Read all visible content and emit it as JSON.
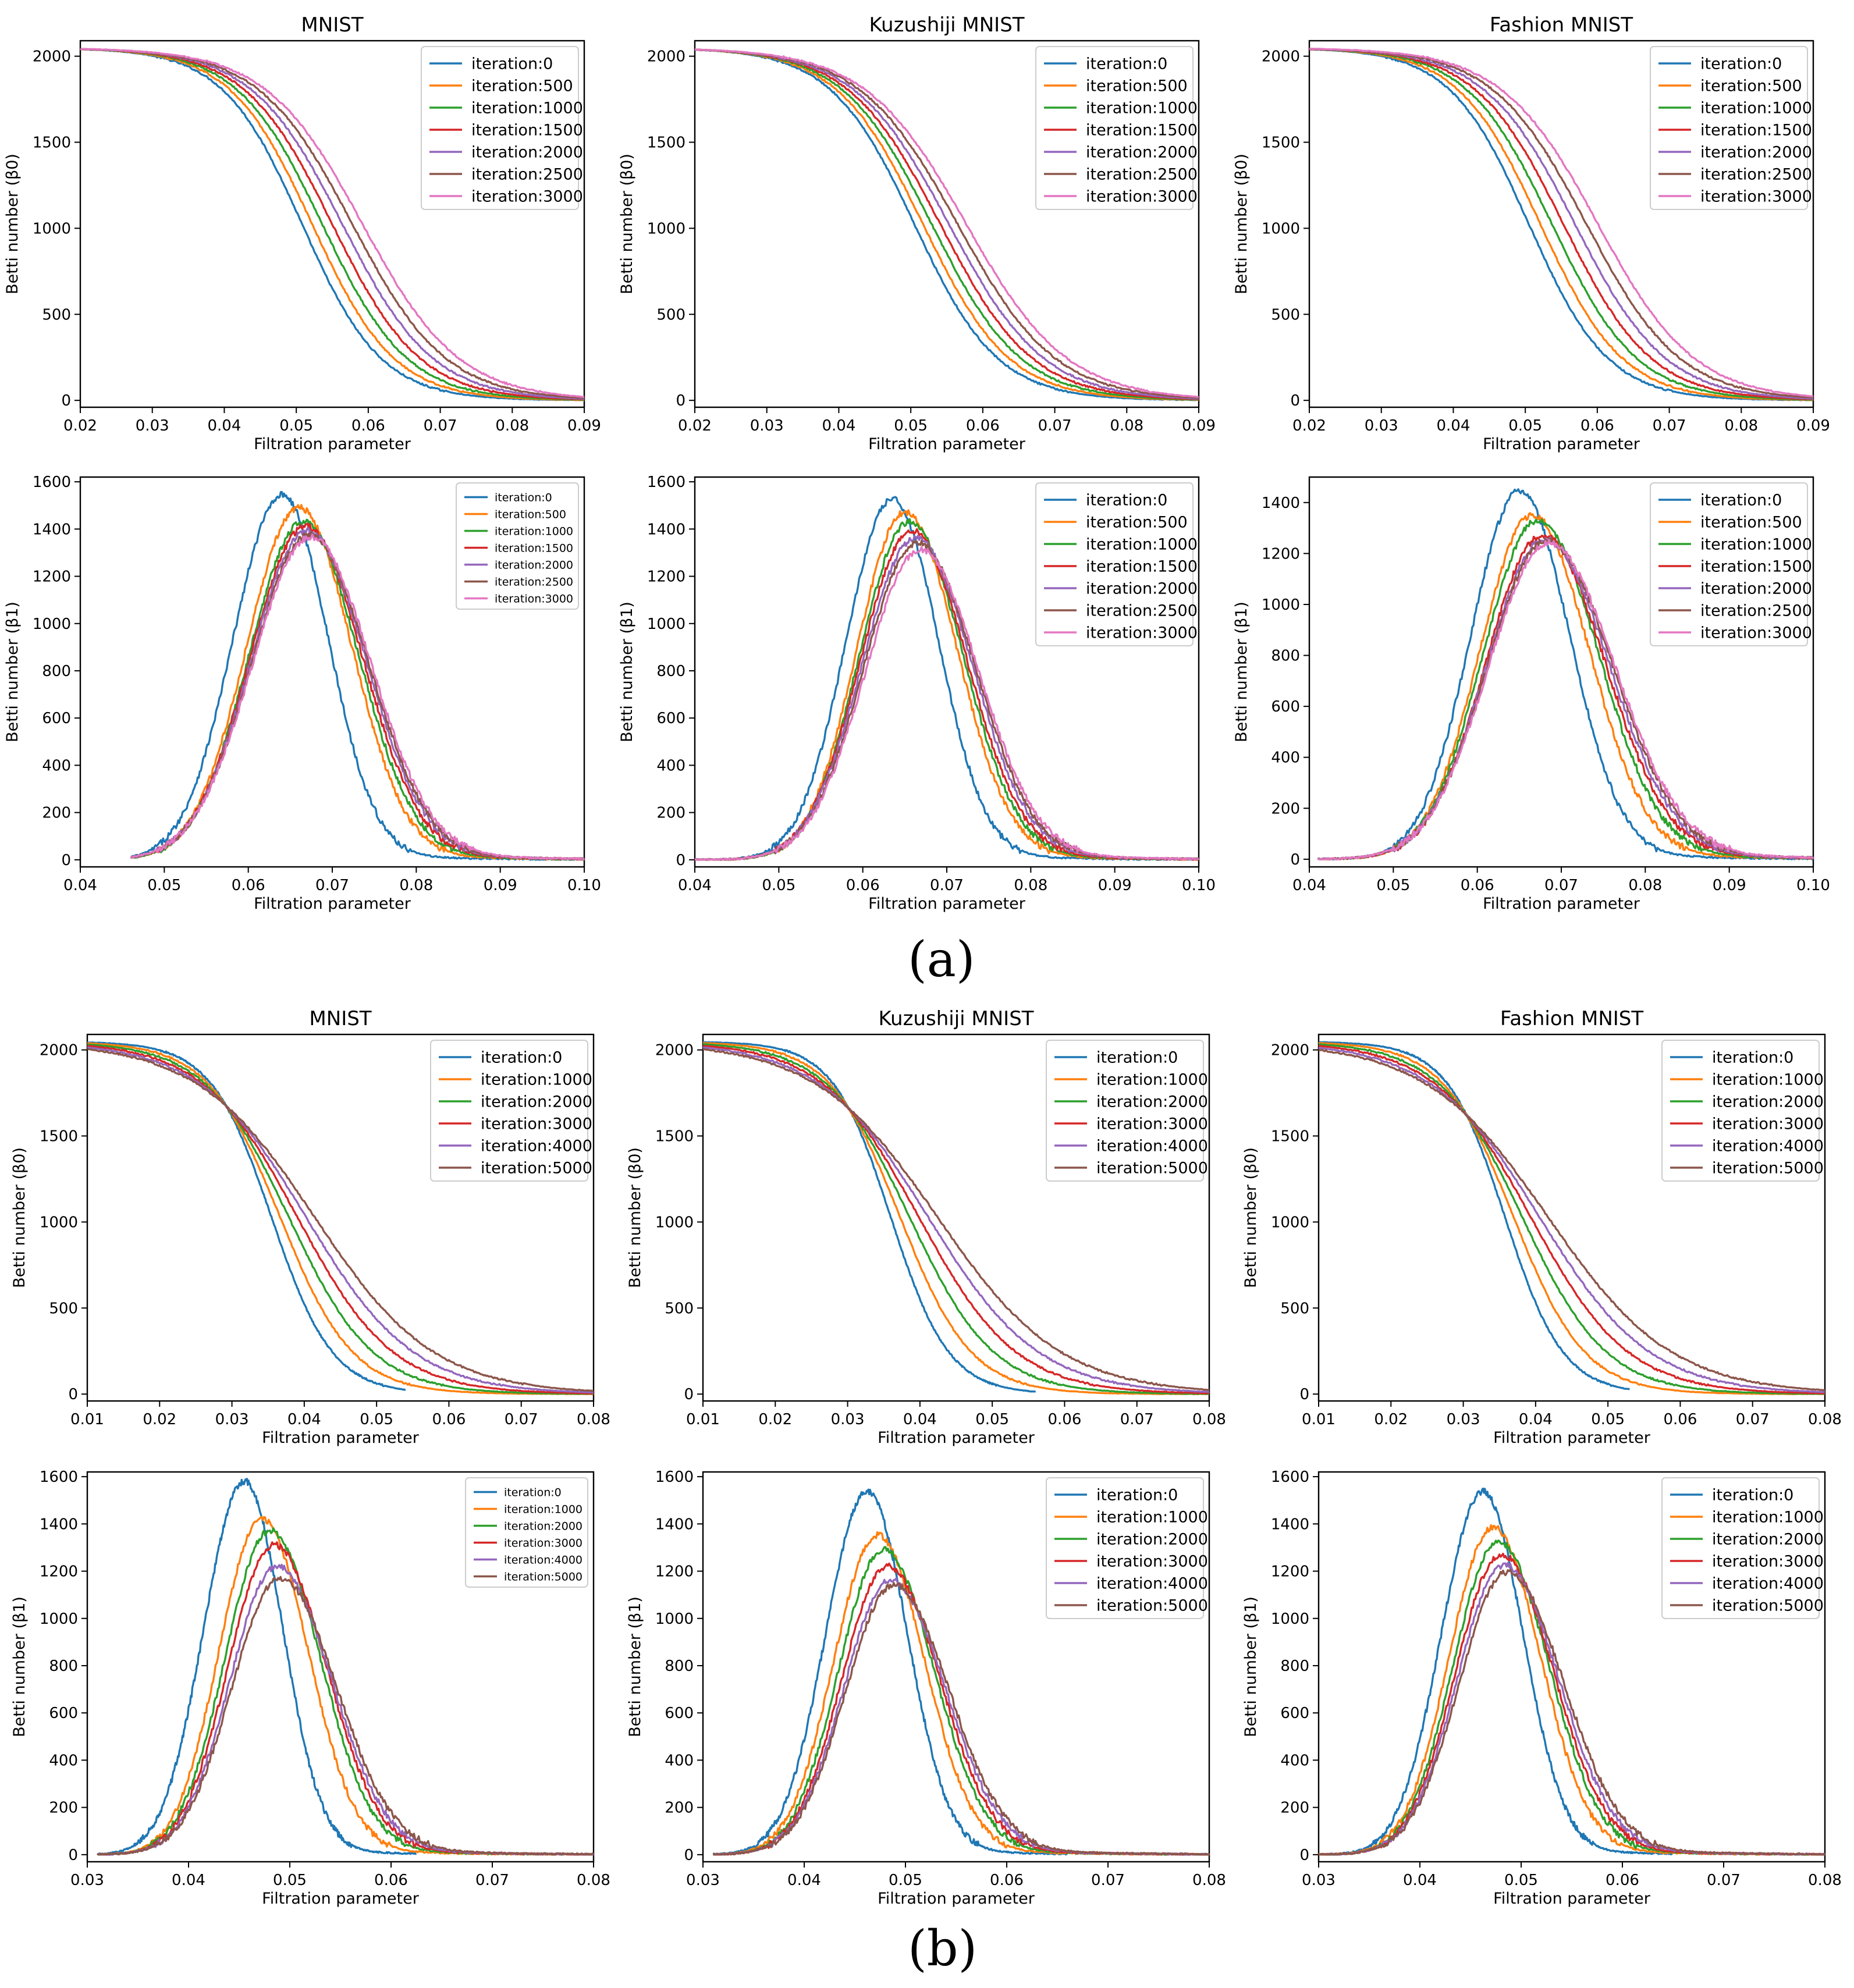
{
  "panels": [
    {
      "label": "(a)"
    },
    {
      "label": "(b)"
    }
  ],
  "palette": [
    "#1f77b4",
    "#ff7f0e",
    "#2ca02c",
    "#d62728",
    "#9467bd",
    "#8c564b",
    "#e377c2"
  ],
  "chart_data": [
    {
      "type": "line",
      "panel": "(a)",
      "row": 0,
      "col": 0,
      "title": "MNIST",
      "xlabel": "Filtration parameter",
      "ylabel": "Betti number (β0)",
      "xlim": [
        0.02,
        0.09
      ],
      "ylim": [
        -40,
        2090
      ],
      "xticks": [
        "0.02",
        "0.03",
        "0.04",
        "0.05",
        "0.06",
        "0.07",
        "0.08",
        "0.09"
      ],
      "yticks": [
        "0",
        "500",
        "1000",
        "1500",
        "2000"
      ],
      "legend": "top-right",
      "legend_size": "normal",
      "curve": {
        "kind": "sigmoid",
        "top": 2048,
        "x0": 0.0508,
        "x0_step": 0.0014,
        "scale": 0.0055,
        "scale_step": 0.0002,
        "xmin": 0.02,
        "xmax": 0.09
      },
      "series": [
        {
          "name": "iteration:0"
        },
        {
          "name": "iteration:500"
        },
        {
          "name": "iteration:1000"
        },
        {
          "name": "iteration:1500"
        },
        {
          "name": "iteration:2000"
        },
        {
          "name": "iteration:2500"
        },
        {
          "name": "iteration:3000"
        }
      ]
    },
    {
      "type": "line",
      "panel": "(a)",
      "row": 0,
      "col": 1,
      "title": "Kuzushiji MNIST",
      "xlabel": "Filtration parameter",
      "ylabel": "Betti number (β0)",
      "xlim": [
        0.02,
        0.09
      ],
      "ylim": [
        -40,
        2090
      ],
      "xticks": [
        "0.02",
        "0.03",
        "0.04",
        "0.05",
        "0.06",
        "0.07",
        "0.08",
        "0.09"
      ],
      "yticks": [
        "0",
        "500",
        "1000",
        "1500",
        "2000"
      ],
      "legend": "top-right",
      "legend_size": "normal",
      "curve": {
        "kind": "sigmoid",
        "top": 2048,
        "x0": 0.0505,
        "x0_step": 0.0012,
        "scale": 0.0058,
        "scale_step": 0.0002,
        "xmin": 0.02,
        "xmax": 0.09
      },
      "series": [
        {
          "name": "iteration:0"
        },
        {
          "name": "iteration:500"
        },
        {
          "name": "iteration:1000"
        },
        {
          "name": "iteration:1500"
        },
        {
          "name": "iteration:2000"
        },
        {
          "name": "iteration:2500"
        },
        {
          "name": "iteration:3000"
        }
      ]
    },
    {
      "type": "line",
      "panel": "(a)",
      "row": 0,
      "col": 2,
      "title": "Fashion MNIST",
      "xlabel": "Filtration parameter",
      "ylabel": "Betti number (β0)",
      "xlim": [
        0.02,
        0.09
      ],
      "ylim": [
        -40,
        2090
      ],
      "xticks": [
        "0.02",
        "0.03",
        "0.04",
        "0.05",
        "0.06",
        "0.07",
        "0.08",
        "0.09"
      ],
      "yticks": [
        "0",
        "500",
        "1000",
        "1500",
        "2000"
      ],
      "legend": "top-right",
      "legend_size": "normal",
      "curve": {
        "kind": "sigmoid",
        "top": 2048,
        "x0": 0.0505,
        "x0_step": 0.0016,
        "scale": 0.0055,
        "scale_step": 0.0002,
        "xmin": 0.02,
        "xmax": 0.09
      },
      "series": [
        {
          "name": "iteration:0"
        },
        {
          "name": "iteration:500"
        },
        {
          "name": "iteration:1000"
        },
        {
          "name": "iteration:1500"
        },
        {
          "name": "iteration:2000"
        },
        {
          "name": "iteration:2500"
        },
        {
          "name": "iteration:3000"
        }
      ]
    },
    {
      "type": "line",
      "panel": "(a)",
      "row": 1,
      "col": 0,
      "title": "",
      "xlabel": "Filtration parameter",
      "ylabel": "Betti number (β1)",
      "xlim": [
        0.04,
        0.1
      ],
      "ylim": [
        -30,
        1620
      ],
      "xticks": [
        "0.04",
        "0.05",
        "0.06",
        "0.07",
        "0.08",
        "0.09",
        "0.10"
      ],
      "yticks": [
        "0",
        "200",
        "400",
        "600",
        "800",
        "1000",
        "1200",
        "1400",
        "1600"
      ],
      "legend": "top-right",
      "legend_size": "small",
      "curve": {
        "kind": "peak",
        "xmin": 0.046,
        "xmax": 0.1,
        "peaks": [
          1545,
          1490,
          1430,
          1410,
          1390,
          1375,
          1365
        ],
        "mu": [
          0.064,
          0.066,
          0.0665,
          0.0668,
          0.067,
          0.0672,
          0.0674
        ],
        "sl": [
          0.0058,
          0.0062,
          0.0064,
          0.0066,
          0.0067,
          0.0068,
          0.0069
        ],
        "sr": [
          0.0055,
          0.0063,
          0.0066,
          0.0068,
          0.007,
          0.0071,
          0.0072
        ]
      },
      "series": [
        {
          "name": "iteration:0"
        },
        {
          "name": "iteration:500"
        },
        {
          "name": "iteration:1000"
        },
        {
          "name": "iteration:1500"
        },
        {
          "name": "iteration:2000"
        },
        {
          "name": "iteration:2500"
        },
        {
          "name": "iteration:3000"
        }
      ]
    },
    {
      "type": "line",
      "panel": "(a)",
      "row": 1,
      "col": 1,
      "title": "",
      "xlabel": "Filtration parameter",
      "ylabel": "Betti number (β1)",
      "xlim": [
        0.04,
        0.1
      ],
      "ylim": [
        -30,
        1620
      ],
      "xticks": [
        "0.04",
        "0.05",
        "0.06",
        "0.07",
        "0.08",
        "0.09",
        "0.10"
      ],
      "yticks": [
        "0",
        "200",
        "400",
        "600",
        "800",
        "1000",
        "1200",
        "1400",
        "1600"
      ],
      "legend": "top-right",
      "legend_size": "normal",
      "curve": {
        "kind": "peak",
        "xmin": 0.04,
        "xmax": 0.1,
        "peaks": [
          1525,
          1470,
          1430,
          1390,
          1360,
          1340,
          1310
        ],
        "mu": [
          0.0635,
          0.065,
          0.0655,
          0.0658,
          0.0662,
          0.0665,
          0.0668
        ],
        "sl": [
          0.0055,
          0.0057,
          0.0059,
          0.0061,
          0.0063,
          0.0064,
          0.0065
        ],
        "sr": [
          0.0055,
          0.0062,
          0.0064,
          0.0066,
          0.0068,
          0.0069,
          0.007
        ]
      },
      "series": [
        {
          "name": "iteration:0"
        },
        {
          "name": "iteration:500"
        },
        {
          "name": "iteration:1000"
        },
        {
          "name": "iteration:1500"
        },
        {
          "name": "iteration:2000"
        },
        {
          "name": "iteration:2500"
        },
        {
          "name": "iteration:3000"
        }
      ]
    },
    {
      "type": "line",
      "panel": "(a)",
      "row": 1,
      "col": 2,
      "title": "",
      "xlabel": "Filtration parameter",
      "ylabel": "Betti number (β1)",
      "xlim": [
        0.04,
        0.1
      ],
      "ylim": [
        -30,
        1500
      ],
      "xticks": [
        "0.04",
        "0.05",
        "0.06",
        "0.07",
        "0.08",
        "0.09",
        "0.10"
      ],
      "yticks": [
        "0",
        "200",
        "400",
        "600",
        "800",
        "1000",
        "1200",
        "1400"
      ],
      "legend": "top-right",
      "legend_size": "normal",
      "curve": {
        "kind": "peak",
        "xmin": 0.041,
        "xmax": 0.1,
        "peaks": [
          1445,
          1350,
          1330,
          1270,
          1255,
          1250,
          1240
        ],
        "mu": [
          0.065,
          0.0665,
          0.0672,
          0.0677,
          0.068,
          0.0682,
          0.0684
        ],
        "sl": [
          0.0058,
          0.0062,
          0.0065,
          0.0067,
          0.0069,
          0.007,
          0.0071
        ],
        "sr": [
          0.006,
          0.0068,
          0.0072,
          0.0075,
          0.0077,
          0.0079,
          0.008
        ]
      },
      "series": [
        {
          "name": "iteration:0"
        },
        {
          "name": "iteration:500"
        },
        {
          "name": "iteration:1000"
        },
        {
          "name": "iteration:1500"
        },
        {
          "name": "iteration:2000"
        },
        {
          "name": "iteration:2500"
        },
        {
          "name": "iteration:3000"
        }
      ]
    },
    {
      "type": "line",
      "panel": "(b)",
      "row": 0,
      "col": 0,
      "title": "MNIST",
      "xlabel": "Filtration parameter",
      "ylabel": "Betti number (β0)",
      "xlim": [
        0.01,
        0.08
      ],
      "ylim": [
        -40,
        2090
      ],
      "xticks": [
        "0.01",
        "0.02",
        "0.03",
        "0.04",
        "0.05",
        "0.06",
        "0.07",
        "0.08"
      ],
      "yticks": [
        "0",
        "500",
        "1000",
        "1500",
        "2000"
      ],
      "legend": "top-right",
      "legend_size": "normal",
      "curve": {
        "kind": "sigmoid",
        "top": 2048,
        "x0": 0.0355,
        "x0_step": 0.0012,
        "scale": 0.0042,
        "scale_step": 0.0008,
        "xmin": 0.01,
        "xmaxs": [
          0.054,
          0.08,
          0.08,
          0.08,
          0.08,
          0.08
        ]
      },
      "series": [
        {
          "name": "iteration:0"
        },
        {
          "name": "iteration:1000"
        },
        {
          "name": "iteration:2000"
        },
        {
          "name": "iteration:3000"
        },
        {
          "name": "iteration:4000"
        },
        {
          "name": "iteration:5000"
        }
      ]
    },
    {
      "type": "line",
      "panel": "(b)",
      "row": 0,
      "col": 1,
      "title": "Kuzushiji MNIST",
      "xlabel": "Filtration parameter",
      "ylabel": "Betti number (β0)",
      "xlim": [
        0.01,
        0.08
      ],
      "ylim": [
        -40,
        2090
      ],
      "xticks": [
        "0.01",
        "0.02",
        "0.03",
        "0.04",
        "0.05",
        "0.06",
        "0.07",
        "0.08"
      ],
      "yticks": [
        "0",
        "500",
        "1000",
        "1500",
        "2000"
      ],
      "legend": "top-right",
      "legend_size": "normal",
      "curve": {
        "kind": "sigmoid",
        "top": 2048,
        "x0": 0.036,
        "x0_step": 0.0013,
        "scale": 0.004,
        "scale_step": 0.0009,
        "xmin": 0.01,
        "xmaxs": [
          0.056,
          0.08,
          0.08,
          0.08,
          0.08,
          0.08
        ]
      },
      "series": [
        {
          "name": "iteration:0"
        },
        {
          "name": "iteration:1000"
        },
        {
          "name": "iteration:2000"
        },
        {
          "name": "iteration:3000"
        },
        {
          "name": "iteration:4000"
        },
        {
          "name": "iteration:5000"
        }
      ]
    },
    {
      "type": "line",
      "panel": "(b)",
      "row": 0,
      "col": 2,
      "title": "Fashion MNIST",
      "xlabel": "Filtration parameter",
      "ylabel": "Betti number (β0)",
      "xlim": [
        0.01,
        0.08
      ],
      "ylim": [
        -40,
        2090
      ],
      "xticks": [
        "0.01",
        "0.02",
        "0.03",
        "0.04",
        "0.05",
        "0.06",
        "0.07",
        "0.08"
      ],
      "yticks": [
        "0",
        "500",
        "1000",
        "1500",
        "2000"
      ],
      "legend": "top-right",
      "legend_size": "normal",
      "curve": {
        "kind": "sigmoid",
        "top": 2048,
        "x0": 0.0358,
        "x0_step": 0.0012,
        "scale": 0.004,
        "scale_step": 0.0009,
        "xmin": 0.01,
        "xmaxs": [
          0.053,
          0.08,
          0.08,
          0.08,
          0.08,
          0.08
        ]
      },
      "series": [
        {
          "name": "iteration:0"
        },
        {
          "name": "iteration:1000"
        },
        {
          "name": "iteration:2000"
        },
        {
          "name": "iteration:3000"
        },
        {
          "name": "iteration:4000"
        },
        {
          "name": "iteration:5000"
        }
      ]
    },
    {
      "type": "line",
      "panel": "(b)",
      "row": 1,
      "col": 0,
      "title": "",
      "xlabel": "Filtration parameter",
      "ylabel": "Betti number (β1)",
      "xlim": [
        0.03,
        0.08
      ],
      "ylim": [
        -30,
        1620
      ],
      "xticks": [
        "0.03",
        "0.04",
        "0.05",
        "0.06",
        "0.07",
        "0.08"
      ],
      "yticks": [
        "0",
        "200",
        "400",
        "600",
        "800",
        "1000",
        "1200",
        "1400",
        "1600"
      ],
      "legend": "top-right",
      "legend_size": "small",
      "curve": {
        "kind": "peak",
        "xmin": 0.031,
        "xmaxs": [
          0.0625,
          0.08,
          0.08,
          0.08,
          0.08,
          0.08
        ],
        "peaks": [
          1580,
          1420,
          1370,
          1310,
          1220,
          1170
        ],
        "mu": [
          0.0455,
          0.0472,
          0.048,
          0.0484,
          0.0487,
          0.049
        ],
        "sl": [
          0.004,
          0.0042,
          0.0044,
          0.0045,
          0.0046,
          0.0047
        ],
        "sr": [
          0.0038,
          0.0046,
          0.005,
          0.0052,
          0.0054,
          0.0056
        ]
      },
      "series": [
        {
          "name": "iteration:0"
        },
        {
          "name": "iteration:1000"
        },
        {
          "name": "iteration:2000"
        },
        {
          "name": "iteration:3000"
        },
        {
          "name": "iteration:4000"
        },
        {
          "name": "iteration:5000"
        }
      ]
    },
    {
      "type": "line",
      "panel": "(b)",
      "row": 1,
      "col": 1,
      "title": "",
      "xlabel": "Filtration parameter",
      "ylabel": "Betti number (β1)",
      "xlim": [
        0.03,
        0.08
      ],
      "ylim": [
        -30,
        1620
      ],
      "xticks": [
        "0.03",
        "0.04",
        "0.05",
        "0.06",
        "0.07",
        "0.08"
      ],
      "yticks": [
        "0",
        "200",
        "400",
        "600",
        "800",
        "1000",
        "1200",
        "1400",
        "1600"
      ],
      "legend": "top-right",
      "legend_size": "normal",
      "curve": {
        "kind": "peak",
        "xmin": 0.031,
        "xmaxs": [
          0.066,
          0.08,
          0.08,
          0.08,
          0.08,
          0.08
        ],
        "peaks": [
          1535,
          1350,
          1290,
          1220,
          1160,
          1140
        ],
        "mu": [
          0.0462,
          0.0472,
          0.0478,
          0.0482,
          0.0485,
          0.0488
        ],
        "sl": [
          0.0041,
          0.0043,
          0.0044,
          0.0045,
          0.0046,
          0.0047
        ],
        "sr": [
          0.004,
          0.0047,
          0.005,
          0.0052,
          0.0054,
          0.0055
        ]
      },
      "series": [
        {
          "name": "iteration:0"
        },
        {
          "name": "iteration:1000"
        },
        {
          "name": "iteration:2000"
        },
        {
          "name": "iteration:3000"
        },
        {
          "name": "iteration:4000"
        },
        {
          "name": "iteration:5000"
        }
      ]
    },
    {
      "type": "line",
      "panel": "(b)",
      "row": 1,
      "col": 2,
      "title": "",
      "xlabel": "Filtration parameter",
      "ylabel": "Betti number (β1)",
      "xlim": [
        0.03,
        0.08
      ],
      "ylim": [
        -30,
        1620
      ],
      "xticks": [
        "0.03",
        "0.04",
        "0.05",
        "0.06",
        "0.07",
        "0.08"
      ],
      "yticks": [
        "0",
        "200",
        "400",
        "600",
        "800",
        "1000",
        "1200",
        "1400",
        "1600"
      ],
      "legend": "top-right",
      "legend_size": "normal",
      "curve": {
        "kind": "peak",
        "xmin": 0.03,
        "xmaxs": [
          0.065,
          0.08,
          0.08,
          0.08,
          0.08,
          0.08
        ],
        "peaks": [
          1535,
          1385,
          1325,
          1270,
          1225,
          1195
        ],
        "mu": [
          0.0462,
          0.0472,
          0.0477,
          0.048,
          0.0483,
          0.0486
        ],
        "sl": [
          0.0041,
          0.0043,
          0.0044,
          0.0045,
          0.0046,
          0.0047
        ],
        "sr": [
          0.004,
          0.0047,
          0.005,
          0.0052,
          0.0054,
          0.0056
        ]
      },
      "series": [
        {
          "name": "iteration:0"
        },
        {
          "name": "iteration:1000"
        },
        {
          "name": "iteration:2000"
        },
        {
          "name": "iteration:3000"
        },
        {
          "name": "iteration:4000"
        },
        {
          "name": "iteration:5000"
        }
      ]
    }
  ]
}
